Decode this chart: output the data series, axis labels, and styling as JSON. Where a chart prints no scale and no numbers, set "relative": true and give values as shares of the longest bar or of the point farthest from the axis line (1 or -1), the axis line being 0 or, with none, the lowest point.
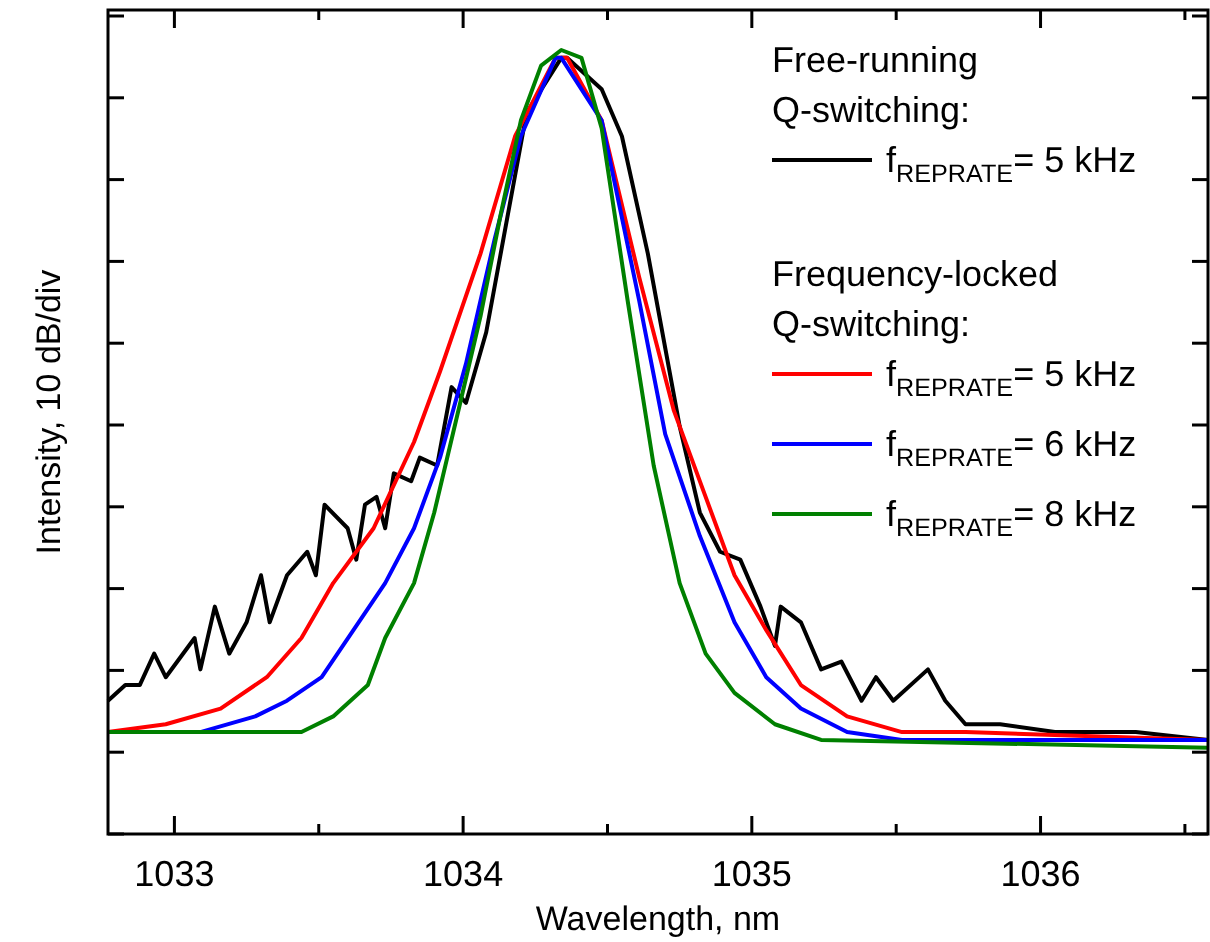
{
  "chart_data": {
    "type": "line",
    "relative": true,
    "xlabel": "Wavelength, nm",
    "ylabel": "Intensity, 10 dB/div",
    "xlim": [
      1032.77,
      1036.58
    ],
    "xticks": [
      1033,
      {
        "value": 1033.5,
        "label": null
      },
      1034,
      {
        "value": 1034.5,
        "label": null
      },
      1035,
      {
        "value": 1035.5,
        "label": null
      },
      1036,
      {
        "value": 1036.5,
        "label": null
      }
    ],
    "legend": "top right",
    "marker": "none",
    "line_style": "solid",
    "grid": false,
    "annotations": [
      "Free-running Q-switching:",
      "Frequency-locked Q-switching:"
    ],
    "series": [
      {
        "name": "f$_{REPRATE}$= 5 kHz",
        "color": "#000000",
        "x": [
          1032.77,
          1032.83,
          1032.88,
          1032.93,
          1032.97,
          1033.07,
          1033.09,
          1033.14,
          1033.19,
          1033.25,
          1033.3,
          1033.33,
          1033.39,
          1033.46,
          1033.49,
          1033.52,
          1033.6,
          1033.63,
          1033.66,
          1033.7,
          1033.73,
          1033.76,
          1033.82,
          1033.85,
          1033.91,
          1033.96,
          1034.01,
          1034.08,
          1034.15,
          1034.22,
          1034.34,
          1034.36,
          1034.48,
          1034.55,
          1034.64,
          1034.75,
          1034.82,
          1034.89,
          1034.96,
          1035.03,
          1035.08,
          1035.1,
          1035.17,
          1035.24,
          1035.31,
          1035.38,
          1035.43,
          1035.49,
          1035.61,
          1035.67,
          1035.74,
          1035.86,
          1036.05,
          1036.33,
          1036.58
        ],
        "values": [
          0.17,
          0.19,
          0.19,
          0.23,
          0.2,
          0.25,
          0.21,
          0.29,
          0.23,
          0.27,
          0.33,
          0.27,
          0.33,
          0.36,
          0.33,
          0.42,
          0.39,
          0.35,
          0.42,
          0.43,
          0.39,
          0.46,
          0.45,
          0.48,
          0.47,
          0.57,
          0.55,
          0.64,
          0.78,
          0.92,
          0.99,
          0.99,
          0.95,
          0.89,
          0.74,
          0.52,
          0.41,
          0.36,
          0.35,
          0.29,
          0.24,
          0.29,
          0.27,
          0.21,
          0.22,
          0.17,
          0.2,
          0.17,
          0.21,
          0.17,
          0.14,
          0.14,
          0.13,
          0.13,
          0.12
        ]
      },
      {
        "name": "f$_{REPRATE}$= 5 kHz",
        "color": "#ff0000",
        "x": [
          1032.77,
          1032.97,
          1033.16,
          1033.32,
          1033.44,
          1033.55,
          1033.69,
          1033.83,
          1033.92,
          1034.06,
          1034.18,
          1034.32,
          1034.36,
          1034.48,
          1034.61,
          1034.73,
          1034.84,
          1034.94,
          1035.05,
          1035.17,
          1035.33,
          1035.52,
          1035.74,
          1036.58
        ],
        "values": [
          0.13,
          0.14,
          0.16,
          0.2,
          0.25,
          0.32,
          0.39,
          0.5,
          0.59,
          0.74,
          0.89,
          0.99,
          0.99,
          0.91,
          0.71,
          0.54,
          0.43,
          0.33,
          0.26,
          0.19,
          0.15,
          0.13,
          0.13,
          0.12
        ]
      },
      {
        "name": "f$_{REPRATE}$= 6 kHz",
        "color": "#0000ff",
        "x": [
          1033.09,
          1033.28,
          1033.39,
          1033.51,
          1033.62,
          1033.73,
          1033.83,
          1033.92,
          1034.01,
          1034.11,
          1034.2,
          1034.32,
          1034.34,
          1034.48,
          1034.61,
          1034.7,
          1034.82,
          1034.94,
          1035.05,
          1035.17,
          1035.33,
          1035.52,
          1036.58
        ],
        "values": [
          0.13,
          0.15,
          0.17,
          0.2,
          0.26,
          0.32,
          0.39,
          0.48,
          0.6,
          0.76,
          0.89,
          0.99,
          0.99,
          0.91,
          0.68,
          0.51,
          0.38,
          0.27,
          0.2,
          0.16,
          0.13,
          0.12,
          0.12
        ]
      },
      {
        "name": "f$_{REPRATE}$= 8 kHz",
        "color": "#008000",
        "x": [
          1032.77,
          1033.44,
          1033.55,
          1033.67,
          1033.73,
          1033.83,
          1033.9,
          1033.99,
          1034.06,
          1034.13,
          1034.2,
          1034.27,
          1034.34,
          1034.41,
          1034.48,
          1034.57,
          1034.66,
          1034.75,
          1034.84,
          1034.94,
          1035.08,
          1035.24,
          1036.58
        ],
        "values": [
          0.13,
          0.13,
          0.15,
          0.19,
          0.25,
          0.32,
          0.41,
          0.55,
          0.66,
          0.79,
          0.91,
          0.98,
          1.0,
          0.99,
          0.9,
          0.68,
          0.47,
          0.32,
          0.23,
          0.18,
          0.14,
          0.12,
          0.11
        ]
      }
    ]
  }
}
